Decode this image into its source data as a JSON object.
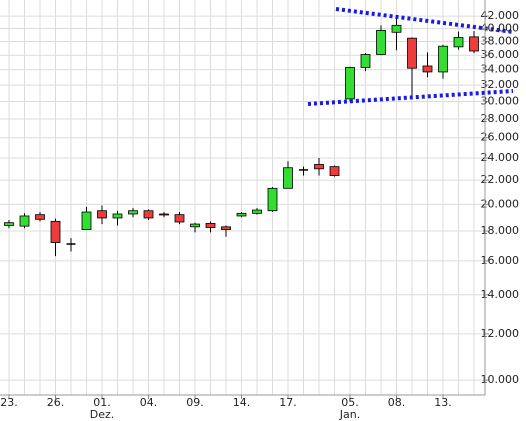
{
  "chart_data": {
    "type": "candlestick",
    "log_scale": true,
    "grid": true,
    "up_color": "#33dd33",
    "down_color": "#ee3b3b",
    "doji_color": "#000000",
    "categories": [
      "23.",
      null,
      null,
      "26.",
      null,
      null,
      "01.",
      null,
      null,
      "04.",
      null,
      null,
      "09.",
      null,
      null,
      "14.",
      null,
      null,
      "17.",
      null,
      null,
      null,
      "05.",
      null,
      null,
      "08.",
      null,
      null,
      "13.",
      null,
      null
    ],
    "months": [
      null,
      null,
      null,
      null,
      null,
      null,
      "Dez.",
      null,
      null,
      null,
      null,
      null,
      null,
      null,
      null,
      null,
      null,
      null,
      null,
      null,
      null,
      null,
      "Jan.",
      null,
      null,
      null,
      null,
      null,
      null,
      null,
      null
    ],
    "open": [
      18400,
      18350,
      19200,
      18700,
      17100,
      18100,
      19500,
      18950,
      19250,
      19500,
      19250,
      19200,
      18300,
      18550,
      18300,
      19100,
      19300,
      19500,
      21300,
      22900,
      23400,
      23200,
      30300,
      34300,
      36100,
      39400,
      38500,
      34500,
      33700,
      37200,
      38700
    ],
    "high": [
      18800,
      19300,
      19400,
      18900,
      17500,
      19800,
      19900,
      19500,
      19700,
      19600,
      19400,
      19400,
      18600,
      18700,
      18400,
      19400,
      19700,
      21400,
      23700,
      23200,
      24000,
      23300,
      34400,
      36300,
      40500,
      41800,
      38600,
      36400,
      37500,
      39500,
      39600
    ],
    "low": [
      18200,
      18200,
      18700,
      16300,
      16600,
      18100,
      18500,
      18400,
      19000,
      18800,
      19000,
      18500,
      17900,
      17900,
      17600,
      19000,
      19200,
      19400,
      21300,
      22400,
      22400,
      22300,
      30000,
      33800,
      36000,
      36700,
      30500,
      33000,
      32800,
      36800,
      36300
    ],
    "close": [
      18600,
      19100,
      18850,
      17200,
      17100,
      19400,
      18950,
      19250,
      19500,
      18950,
      19200,
      18650,
      18500,
      18250,
      18100,
      19300,
      19550,
      21300,
      23100,
      22900,
      23000,
      22400,
      34300,
      36100,
      39700,
      40500,
      34200,
      33700,
      37300,
      38600,
      36600
    ],
    "ylim": [
      9430,
      44750
    ],
    "yticks": [
      {
        "value": 10000,
        "label": "10.000"
      },
      {
        "value": 12000,
        "label": "12.000"
      },
      {
        "value": 14000,
        "label": "14.000"
      },
      {
        "value": 16000,
        "label": "16.000"
      },
      {
        "value": 18000,
        "label": "18.000"
      },
      {
        "value": 20000,
        "label": "20.000"
      },
      {
        "value": 22000,
        "label": "22.000"
      },
      {
        "value": 24000,
        "label": "24.000"
      },
      {
        "value": 26000,
        "label": "26.000"
      },
      {
        "value": 28000,
        "label": "28.000"
      },
      {
        "value": 30000,
        "label": "30.000"
      },
      {
        "value": 32000,
        "label": "32.000"
      },
      {
        "value": 34000,
        "label": "34.000"
      },
      {
        "value": 36000,
        "label": "36.000"
      },
      {
        "value": 38000,
        "label": "38.000"
      },
      {
        "value": 40000,
        "label": "40.000"
      },
      {
        "value": 42000,
        "label": "42.000"
      }
    ]
  }
}
